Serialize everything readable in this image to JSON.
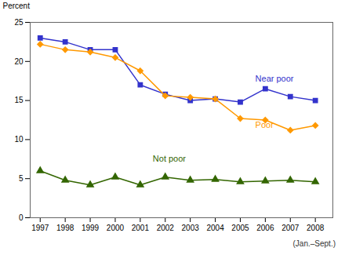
{
  "chart_data": {
    "type": "line",
    "x": [
      1997,
      1998,
      1999,
      2000,
      2001,
      2002,
      2003,
      2004,
      2005,
      2006,
      2007,
      2008
    ],
    "series": [
      {
        "name": "Near poor",
        "color": "#3333cc",
        "marker": "square",
        "values": [
          23.0,
          22.5,
          21.5,
          21.5,
          17.0,
          15.8,
          15.0,
          15.2,
          14.8,
          16.5,
          15.5,
          15.0
        ]
      },
      {
        "name": "Poor",
        "color": "#ff9900",
        "marker": "diamond",
        "values": [
          22.2,
          21.5,
          21.2,
          20.5,
          18.8,
          15.6,
          15.4,
          15.2,
          12.7,
          12.5,
          11.2,
          11.8
        ]
      },
      {
        "name": "Not poor",
        "color": "#336600",
        "marker": "triangle",
        "values": [
          6.0,
          4.8,
          4.2,
          5.2,
          4.2,
          5.2,
          4.8,
          4.9,
          4.6,
          4.7,
          4.8,
          4.6
        ]
      }
    ],
    "ylabel": "Percent",
    "xlim": [
      1996.6,
      2008.7
    ],
    "xticks": [
      1997,
      1998,
      1999,
      2000,
      2001,
      2002,
      2003,
      2004,
      2005,
      2006,
      2007,
      2008
    ],
    "ylim": [
      0,
      25
    ],
    "yticks": [
      0,
      5,
      10,
      15,
      20,
      25
    ],
    "grid": false,
    "annotations": [
      {
        "text": "Near poor",
        "x": 2005.6,
        "y": 17.4,
        "color": "#3333cc"
      },
      {
        "text": "Poor",
        "x": 2005.6,
        "y": 11.5,
        "color": "#ff9900"
      },
      {
        "text": "Not poor",
        "x": 2001.5,
        "y": 7.2,
        "color": "#336600"
      }
    ],
    "footnote": "(Jan.–Sept.)"
  }
}
